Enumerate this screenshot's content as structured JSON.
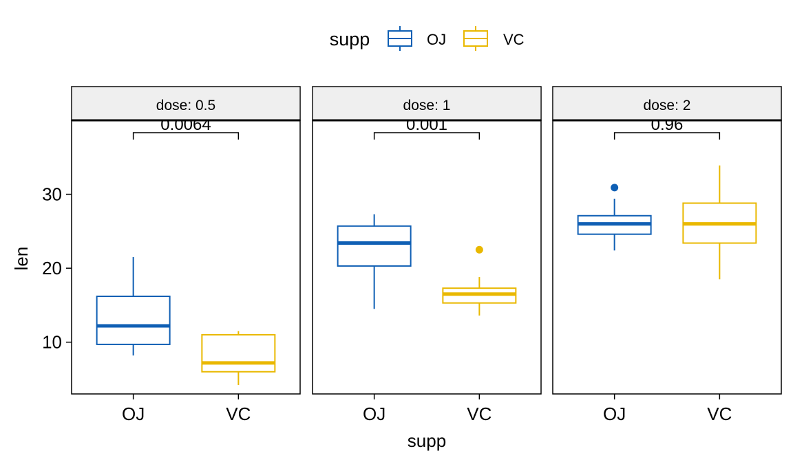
{
  "chart_data": {
    "type": "box",
    "title": "",
    "xlabel": "supp",
    "ylabel": "len",
    "ylim": [
      3.0,
      40.0
    ],
    "y_ticks": [
      10,
      20,
      30
    ],
    "categories": [
      "OJ",
      "VC"
    ],
    "legend": {
      "title": "supp",
      "position": "top",
      "entries": [
        {
          "name": "OJ",
          "color": "#0F5FB4"
        },
        {
          "name": "VC",
          "color": "#E9B800"
        }
      ]
    },
    "facets": [
      {
        "label": "dose: 0.5",
        "p_value": "0.0064",
        "boxes": [
          {
            "group": "OJ",
            "min": 8.2,
            "q1": 9.7,
            "median": 12.2,
            "q3": 16.2,
            "max": 21.5,
            "outliers": []
          },
          {
            "group": "VC",
            "min": 4.2,
            "q1": 6.0,
            "median": 7.2,
            "q3": 11.0,
            "max": 11.5,
            "outliers": []
          }
        ]
      },
      {
        "label": "dose: 1",
        "p_value": "0.001",
        "boxes": [
          {
            "group": "OJ",
            "min": 14.5,
            "q1": 20.3,
            "median": 23.4,
            "q3": 25.7,
            "max": 27.3,
            "outliers": []
          },
          {
            "group": "VC",
            "min": 13.6,
            "q1": 15.3,
            "median": 16.5,
            "q3": 17.3,
            "max": 18.8,
            "outliers": [
              22.5
            ]
          }
        ]
      },
      {
        "label": "dose: 2",
        "p_value": "0.96",
        "boxes": [
          {
            "group": "OJ",
            "min": 22.4,
            "q1": 24.6,
            "median": 26.0,
            "q3": 27.1,
            "max": 29.4,
            "outliers": [
              30.9
            ]
          },
          {
            "group": "VC",
            "min": 18.5,
            "q1": 23.4,
            "median": 26.0,
            "q3": 28.8,
            "max": 33.9,
            "outliers": []
          }
        ]
      }
    ]
  }
}
